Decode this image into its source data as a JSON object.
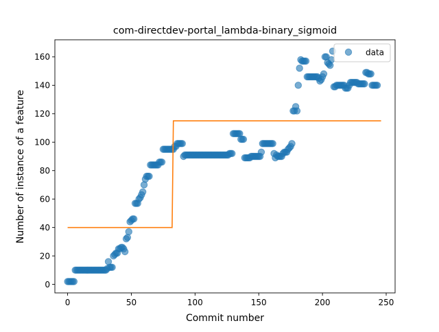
{
  "chart_data": {
    "type": "scatter",
    "title": "com-directdev-portal_lambda-binary_sigmoid",
    "xlabel": "Commit number",
    "ylabel": "Number of instance of a feature",
    "xlim": [
      -10,
      257
    ],
    "ylim": [
      -6,
      172
    ],
    "xticks": [
      0,
      50,
      100,
      150,
      200,
      250
    ],
    "yticks": [
      0,
      20,
      40,
      60,
      80,
      100,
      120,
      140,
      160
    ],
    "grid": false,
    "legend": {
      "position": "top-right",
      "entries": [
        "data"
      ]
    },
    "colors": {
      "data": "#1f77b4",
      "fit": "#ff7f0e"
    },
    "series": [
      {
        "name": "data",
        "kind": "scatter",
        "points": [
          [
            0,
            2
          ],
          [
            1,
            2
          ],
          [
            2,
            2
          ],
          [
            3,
            2
          ],
          [
            4,
            2
          ],
          [
            5,
            2
          ],
          [
            6,
            10
          ],
          [
            7,
            10
          ],
          [
            8,
            10
          ],
          [
            9,
            10
          ],
          [
            10,
            10
          ],
          [
            11,
            10
          ],
          [
            12,
            10
          ],
          [
            13,
            10
          ],
          [
            14,
            10
          ],
          [
            15,
            10
          ],
          [
            16,
            10
          ],
          [
            17,
            10
          ],
          [
            18,
            10
          ],
          [
            19,
            10
          ],
          [
            20,
            10
          ],
          [
            21,
            10
          ],
          [
            22,
            10
          ],
          [
            23,
            10
          ],
          [
            24,
            10
          ],
          [
            25,
            10
          ],
          [
            26,
            10
          ],
          [
            27,
            10
          ],
          [
            28,
            10
          ],
          [
            29,
            10
          ],
          [
            30,
            10
          ],
          [
            31,
            11
          ],
          [
            32,
            16
          ],
          [
            33,
            12
          ],
          [
            34,
            12
          ],
          [
            35,
            12
          ],
          [
            36,
            20
          ],
          [
            37,
            21
          ],
          [
            38,
            22
          ],
          [
            39,
            22
          ],
          [
            40,
            25
          ],
          [
            41,
            25
          ],
          [
            42,
            26
          ],
          [
            43,
            26
          ],
          [
            44,
            25
          ],
          [
            45,
            23
          ],
          [
            46,
            32
          ],
          [
            47,
            33
          ],
          [
            48,
            37
          ],
          [
            49,
            44
          ],
          [
            50,
            45
          ],
          [
            51,
            46
          ],
          [
            52,
            46
          ],
          [
            53,
            57
          ],
          [
            54,
            57
          ],
          [
            55,
            57
          ],
          [
            56,
            60
          ],
          [
            57,
            61
          ],
          [
            58,
            63
          ],
          [
            59,
            65
          ],
          [
            60,
            70
          ],
          [
            61,
            74
          ],
          [
            62,
            76
          ],
          [
            63,
            76
          ],
          [
            64,
            76
          ],
          [
            65,
            84
          ],
          [
            66,
            84
          ],
          [
            67,
            84
          ],
          [
            68,
            84
          ],
          [
            69,
            84
          ],
          [
            70,
            84
          ],
          [
            71,
            84
          ],
          [
            72,
            86
          ],
          [
            73,
            86
          ],
          [
            74,
            86
          ],
          [
            75,
            95
          ],
          [
            76,
            95
          ],
          [
            77,
            95
          ],
          [
            78,
            95
          ],
          [
            79,
            95
          ],
          [
            80,
            95
          ],
          [
            81,
            95
          ],
          [
            82,
            95
          ],
          [
            83,
            95
          ],
          [
            84,
            97
          ],
          [
            85,
            97
          ],
          [
            86,
            99
          ],
          [
            87,
            99
          ],
          [
            88,
            99
          ],
          [
            89,
            99
          ],
          [
            90,
            99
          ],
          [
            91,
            90
          ],
          [
            92,
            91
          ],
          [
            93,
            91
          ],
          [
            94,
            91
          ],
          [
            95,
            91
          ],
          [
            96,
            91
          ],
          [
            97,
            91
          ],
          [
            98,
            91
          ],
          [
            99,
            91
          ],
          [
            100,
            91
          ],
          [
            101,
            91
          ],
          [
            102,
            91
          ],
          [
            103,
            91
          ],
          [
            104,
            91
          ],
          [
            105,
            91
          ],
          [
            106,
            91
          ],
          [
            107,
            91
          ],
          [
            108,
            91
          ],
          [
            109,
            91
          ],
          [
            110,
            91
          ],
          [
            111,
            91
          ],
          [
            112,
            91
          ],
          [
            113,
            91
          ],
          [
            114,
            91
          ],
          [
            115,
            91
          ],
          [
            116,
            91
          ],
          [
            117,
            91
          ],
          [
            118,
            91
          ],
          [
            119,
            91
          ],
          [
            120,
            91
          ],
          [
            121,
            91
          ],
          [
            122,
            91
          ],
          [
            123,
            91
          ],
          [
            124,
            91
          ],
          [
            125,
            91
          ],
          [
            126,
            91
          ],
          [
            127,
            92
          ],
          [
            128,
            92
          ],
          [
            129,
            92
          ],
          [
            130,
            106
          ],
          [
            131,
            106
          ],
          [
            132,
            106
          ],
          [
            133,
            106
          ],
          [
            134,
            106
          ],
          [
            135,
            106
          ],
          [
            136,
            102
          ],
          [
            137,
            102
          ],
          [
            138,
            102
          ],
          [
            139,
            89
          ],
          [
            140,
            89
          ],
          [
            141,
            89
          ],
          [
            142,
            89
          ],
          [
            143,
            89
          ],
          [
            144,
            90
          ],
          [
            145,
            90
          ],
          [
            146,
            90
          ],
          [
            147,
            90
          ],
          [
            148,
            90
          ],
          [
            149,
            90
          ],
          [
            150,
            90
          ],
          [
            151,
            90
          ],
          [
            152,
            93
          ],
          [
            153,
            99
          ],
          [
            154,
            99
          ],
          [
            155,
            99
          ],
          [
            156,
            99
          ],
          [
            157,
            99
          ],
          [
            158,
            99
          ],
          [
            159,
            99
          ],
          [
            160,
            99
          ],
          [
            161,
            99
          ],
          [
            162,
            92
          ],
          [
            163,
            89
          ],
          [
            164,
            91
          ],
          [
            165,
            90
          ],
          [
            166,
            90
          ],
          [
            167,
            90
          ],
          [
            168,
            90
          ],
          [
            169,
            92
          ],
          [
            170,
            93
          ],
          [
            171,
            93
          ],
          [
            172,
            93
          ],
          [
            173,
            95
          ],
          [
            174,
            96
          ],
          [
            175,
            97
          ],
          [
            176,
            99
          ],
          [
            177,
            122
          ],
          [
            178,
            122
          ],
          [
            179,
            125
          ],
          [
            180,
            122
          ],
          [
            181,
            140
          ],
          [
            182,
            152
          ],
          [
            183,
            158
          ],
          [
            184,
            157
          ],
          [
            185,
            157
          ],
          [
            186,
            157
          ],
          [
            187,
            157
          ],
          [
            188,
            146
          ],
          [
            189,
            146
          ],
          [
            190,
            146
          ],
          [
            191,
            146
          ],
          [
            192,
            146
          ],
          [
            193,
            146
          ],
          [
            194,
            146
          ],
          [
            195,
            146
          ],
          [
            196,
            146
          ],
          [
            197,
            145
          ],
          [
            198,
            143
          ],
          [
            199,
            144
          ],
          [
            200,
            146
          ],
          [
            201,
            148
          ],
          [
            202,
            160
          ],
          [
            203,
            160
          ],
          [
            204,
            156
          ],
          [
            205,
            155
          ],
          [
            206,
            154
          ],
          [
            207,
            158
          ],
          [
            208,
            164
          ],
          [
            209,
            139
          ],
          [
            210,
            139
          ],
          [
            211,
            140
          ],
          [
            212,
            140
          ],
          [
            213,
            140
          ],
          [
            214,
            140
          ],
          [
            215,
            140
          ],
          [
            216,
            140
          ],
          [
            217,
            140
          ],
          [
            218,
            138
          ],
          [
            219,
            138
          ],
          [
            220,
            138
          ],
          [
            221,
            140
          ],
          [
            222,
            142
          ],
          [
            223,
            142
          ],
          [
            224,
            142
          ],
          [
            225,
            142
          ],
          [
            226,
            142
          ],
          [
            227,
            142
          ],
          [
            228,
            141
          ],
          [
            229,
            141
          ],
          [
            230,
            141
          ],
          [
            231,
            141
          ],
          [
            232,
            141
          ],
          [
            233,
            141
          ],
          [
            234,
            149
          ],
          [
            235,
            149
          ],
          [
            236,
            148
          ],
          [
            237,
            148
          ],
          [
            238,
            148
          ],
          [
            239,
            140
          ],
          [
            240,
            140
          ],
          [
            241,
            140
          ],
          [
            242,
            140
          ],
          [
            243,
            140
          ]
        ]
      },
      {
        "name": "",
        "kind": "line",
        "points": [
          [
            0,
            40
          ],
          [
            82,
            40
          ],
          [
            83,
            115
          ],
          [
            246,
            115
          ]
        ]
      }
    ]
  }
}
